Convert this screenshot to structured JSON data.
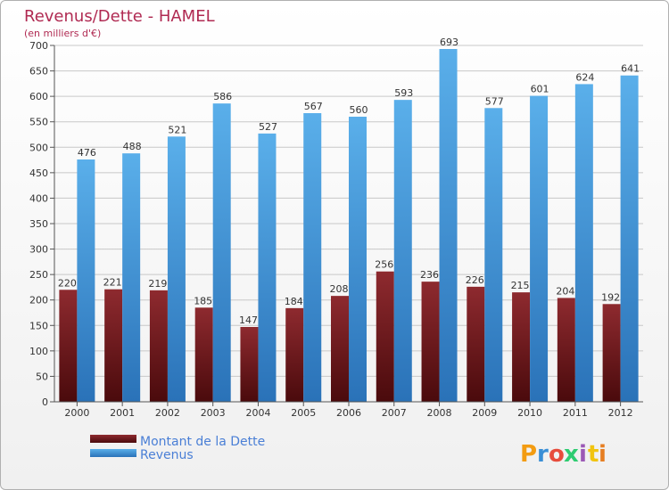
{
  "chart_data": {
    "type": "bar",
    "title": "Revenus/Dette - HAMEL",
    "subtitle": "(en milliers d'€)",
    "categories": [
      "2000",
      "2001",
      "2002",
      "2003",
      "2004",
      "2005",
      "2006",
      "2007",
      "2008",
      "2009",
      "2010",
      "2011",
      "2012"
    ],
    "series": [
      {
        "name": "Montant de la Dette",
        "color": "#7a1a1e",
        "values": [
          220,
          221,
          219,
          185,
          147,
          184,
          208,
          256,
          236,
          226,
          215,
          204,
          192
        ]
      },
      {
        "name": "Revenus",
        "color": "#4a9ee0",
        "values": [
          476,
          488,
          521,
          586,
          527,
          567,
          560,
          593,
          693,
          577,
          601,
          624,
          641
        ]
      }
    ],
    "ylim": [
      0,
      700
    ],
    "yticks": [
      0,
      50,
      100,
      150,
      200,
      250,
      300,
      350,
      400,
      450,
      500,
      550,
      600,
      650,
      700
    ],
    "grid": true,
    "legend": "bottom-left",
    "xlabel": "",
    "ylabel": ""
  },
  "brand": {
    "letters": [
      "P",
      "r",
      "o",
      "x",
      "i",
      "t",
      "i"
    ],
    "colors": [
      "#f39c12",
      "#3a8fd6",
      "#e74c3c",
      "#2ecc71",
      "#9b59b6",
      "#f1c40f",
      "#e67e22"
    ]
  }
}
